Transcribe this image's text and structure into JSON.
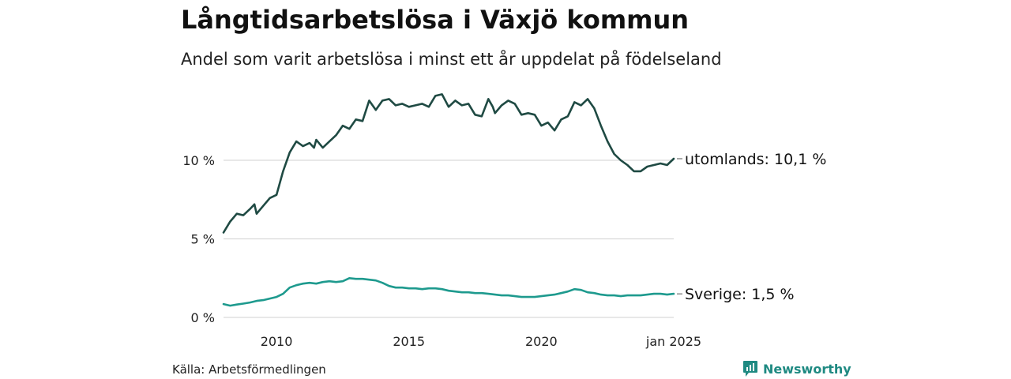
{
  "title": "Långtidsarbetslösa i Växjö kommun",
  "subtitle": "Andel som varit arbetslösa i minst ett år uppdelat på födelseland",
  "source": "Källa: Arbetsförmedlingen",
  "brand": {
    "name": "Newsworthy",
    "icon": "newsworthy-logo-icon",
    "color": "#1f8a82"
  },
  "chart_data": {
    "type": "line",
    "x_range": [
      "2008-01",
      "2025-01"
    ],
    "ylim": [
      0,
      14.5
    ],
    "grid": true,
    "y_ticks": [
      {
        "value": 0,
        "label": "0 %"
      },
      {
        "value": 5,
        "label": "5 %"
      },
      {
        "value": 10,
        "label": "10 %"
      }
    ],
    "x_ticks": [
      {
        "value": "2010-01",
        "label": "2010"
      },
      {
        "value": "2015-01",
        "label": "2015"
      },
      {
        "value": "2020-01",
        "label": "2020"
      },
      {
        "value": "2025-01",
        "label": "jan 2025"
      }
    ],
    "series": [
      {
        "name": "utomlands",
        "end_label": "utomlands: 10,1 %",
        "color": "#1f4a43",
        "points": [
          [
            "2008-01",
            5.4
          ],
          [
            "2008-04",
            6.1
          ],
          [
            "2008-07",
            6.6
          ],
          [
            "2008-10",
            6.5
          ],
          [
            "2009-01",
            6.9
          ],
          [
            "2009-03",
            7.2
          ],
          [
            "2009-04",
            6.6
          ],
          [
            "2009-07",
            7.1
          ],
          [
            "2009-10",
            7.6
          ],
          [
            "2010-01",
            7.8
          ],
          [
            "2010-04",
            9.3
          ],
          [
            "2010-07",
            10.5
          ],
          [
            "2010-10",
            11.2
          ],
          [
            "2011-01",
            10.9
          ],
          [
            "2011-04",
            11.1
          ],
          [
            "2011-06",
            10.8
          ],
          [
            "2011-07",
            11.3
          ],
          [
            "2011-10",
            10.8
          ],
          [
            "2012-01",
            11.2
          ],
          [
            "2012-04",
            11.6
          ],
          [
            "2012-07",
            12.2
          ],
          [
            "2012-10",
            12.0
          ],
          [
            "2013-01",
            12.6
          ],
          [
            "2013-04",
            12.5
          ],
          [
            "2013-07",
            13.8
          ],
          [
            "2013-10",
            13.2
          ],
          [
            "2014-01",
            13.8
          ],
          [
            "2014-04",
            13.9
          ],
          [
            "2014-07",
            13.5
          ],
          [
            "2014-10",
            13.6
          ],
          [
            "2015-01",
            13.4
          ],
          [
            "2015-04",
            13.5
          ],
          [
            "2015-07",
            13.6
          ],
          [
            "2015-10",
            13.4
          ],
          [
            "2016-01",
            14.1
          ],
          [
            "2016-04",
            14.2
          ],
          [
            "2016-07",
            13.4
          ],
          [
            "2016-10",
            13.8
          ],
          [
            "2017-01",
            13.5
          ],
          [
            "2017-04",
            13.6
          ],
          [
            "2017-07",
            12.9
          ],
          [
            "2017-10",
            12.8
          ],
          [
            "2018-01",
            13.9
          ],
          [
            "2018-03",
            13.4
          ],
          [
            "2018-04",
            13.0
          ],
          [
            "2018-07",
            13.5
          ],
          [
            "2018-10",
            13.8
          ],
          [
            "2019-01",
            13.6
          ],
          [
            "2019-04",
            12.9
          ],
          [
            "2019-07",
            13.0
          ],
          [
            "2019-10",
            12.9
          ],
          [
            "2020-01",
            12.2
          ],
          [
            "2020-04",
            12.4
          ],
          [
            "2020-07",
            11.9
          ],
          [
            "2020-10",
            12.6
          ],
          [
            "2021-01",
            12.8
          ],
          [
            "2021-04",
            13.7
          ],
          [
            "2021-07",
            13.5
          ],
          [
            "2021-10",
            13.9
          ],
          [
            "2022-01",
            13.3
          ],
          [
            "2022-04",
            12.2
          ],
          [
            "2022-07",
            11.2
          ],
          [
            "2022-10",
            10.4
          ],
          [
            "2023-01",
            10.0
          ],
          [
            "2023-04",
            9.7
          ],
          [
            "2023-07",
            9.3
          ],
          [
            "2023-10",
            9.3
          ],
          [
            "2024-01",
            9.6
          ],
          [
            "2024-04",
            9.7
          ],
          [
            "2024-07",
            9.8
          ],
          [
            "2024-10",
            9.7
          ],
          [
            "2025-01",
            10.1
          ]
        ]
      },
      {
        "name": "Sverige",
        "end_label": "Sverige:  1,5 %",
        "color": "#1e9a8e",
        "points": [
          [
            "2008-01",
            0.85
          ],
          [
            "2008-04",
            0.75
          ],
          [
            "2008-07",
            0.82
          ],
          [
            "2008-10",
            0.88
          ],
          [
            "2009-01",
            0.95
          ],
          [
            "2009-04",
            1.05
          ],
          [
            "2009-07",
            1.1
          ],
          [
            "2009-10",
            1.2
          ],
          [
            "2010-01",
            1.3
          ],
          [
            "2010-04",
            1.5
          ],
          [
            "2010-07",
            1.9
          ],
          [
            "2010-10",
            2.05
          ],
          [
            "2011-01",
            2.15
          ],
          [
            "2011-04",
            2.2
          ],
          [
            "2011-07",
            2.15
          ],
          [
            "2011-10",
            2.25
          ],
          [
            "2012-01",
            2.3
          ],
          [
            "2012-04",
            2.25
          ],
          [
            "2012-07",
            2.3
          ],
          [
            "2012-10",
            2.5
          ],
          [
            "2013-01",
            2.45
          ],
          [
            "2013-04",
            2.45
          ],
          [
            "2013-07",
            2.4
          ],
          [
            "2013-10",
            2.35
          ],
          [
            "2014-01",
            2.2
          ],
          [
            "2014-04",
            2.0
          ],
          [
            "2014-07",
            1.9
          ],
          [
            "2014-10",
            1.9
          ],
          [
            "2015-01",
            1.85
          ],
          [
            "2015-04",
            1.85
          ],
          [
            "2015-07",
            1.8
          ],
          [
            "2015-10",
            1.85
          ],
          [
            "2016-01",
            1.85
          ],
          [
            "2016-04",
            1.8
          ],
          [
            "2016-07",
            1.7
          ],
          [
            "2016-10",
            1.65
          ],
          [
            "2017-01",
            1.6
          ],
          [
            "2017-04",
            1.6
          ],
          [
            "2017-07",
            1.55
          ],
          [
            "2017-10",
            1.55
          ],
          [
            "2018-01",
            1.5
          ],
          [
            "2018-04",
            1.45
          ],
          [
            "2018-07",
            1.4
          ],
          [
            "2018-10",
            1.4
          ],
          [
            "2019-01",
            1.35
          ],
          [
            "2019-04",
            1.3
          ],
          [
            "2019-07",
            1.3
          ],
          [
            "2019-10",
            1.3
          ],
          [
            "2020-01",
            1.35
          ],
          [
            "2020-04",
            1.4
          ],
          [
            "2020-07",
            1.45
          ],
          [
            "2020-10",
            1.55
          ],
          [
            "2021-01",
            1.65
          ],
          [
            "2021-04",
            1.8
          ],
          [
            "2021-07",
            1.75
          ],
          [
            "2021-10",
            1.6
          ],
          [
            "2022-01",
            1.55
          ],
          [
            "2022-04",
            1.45
          ],
          [
            "2022-07",
            1.4
          ],
          [
            "2022-10",
            1.4
          ],
          [
            "2023-01",
            1.35
          ],
          [
            "2023-04",
            1.4
          ],
          [
            "2023-07",
            1.4
          ],
          [
            "2023-10",
            1.4
          ],
          [
            "2024-01",
            1.45
          ],
          [
            "2024-04",
            1.5
          ],
          [
            "2024-07",
            1.5
          ],
          [
            "2024-10",
            1.45
          ],
          [
            "2025-01",
            1.5
          ]
        ]
      }
    ]
  }
}
